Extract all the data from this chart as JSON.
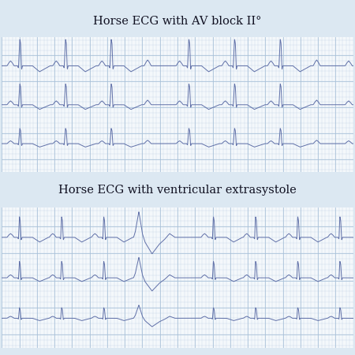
{
  "title1": "Horse ECG with AV block II°",
  "title2": "Horse ECG with ventricular extrasystole",
  "bg_color_light": "#dce8f2",
  "bg_color_grid": "#f4f8fb",
  "grid_minor_color": "#c2d4e4",
  "grid_major_color": "#a8c0d8",
  "ecg_color": "#6070a8",
  "ecg_linewidth": 0.7,
  "title_fontsize": 10.5,
  "title_color": "#111122",
  "fig_width": 4.5,
  "fig_height": 4.5,
  "dpi": 100
}
